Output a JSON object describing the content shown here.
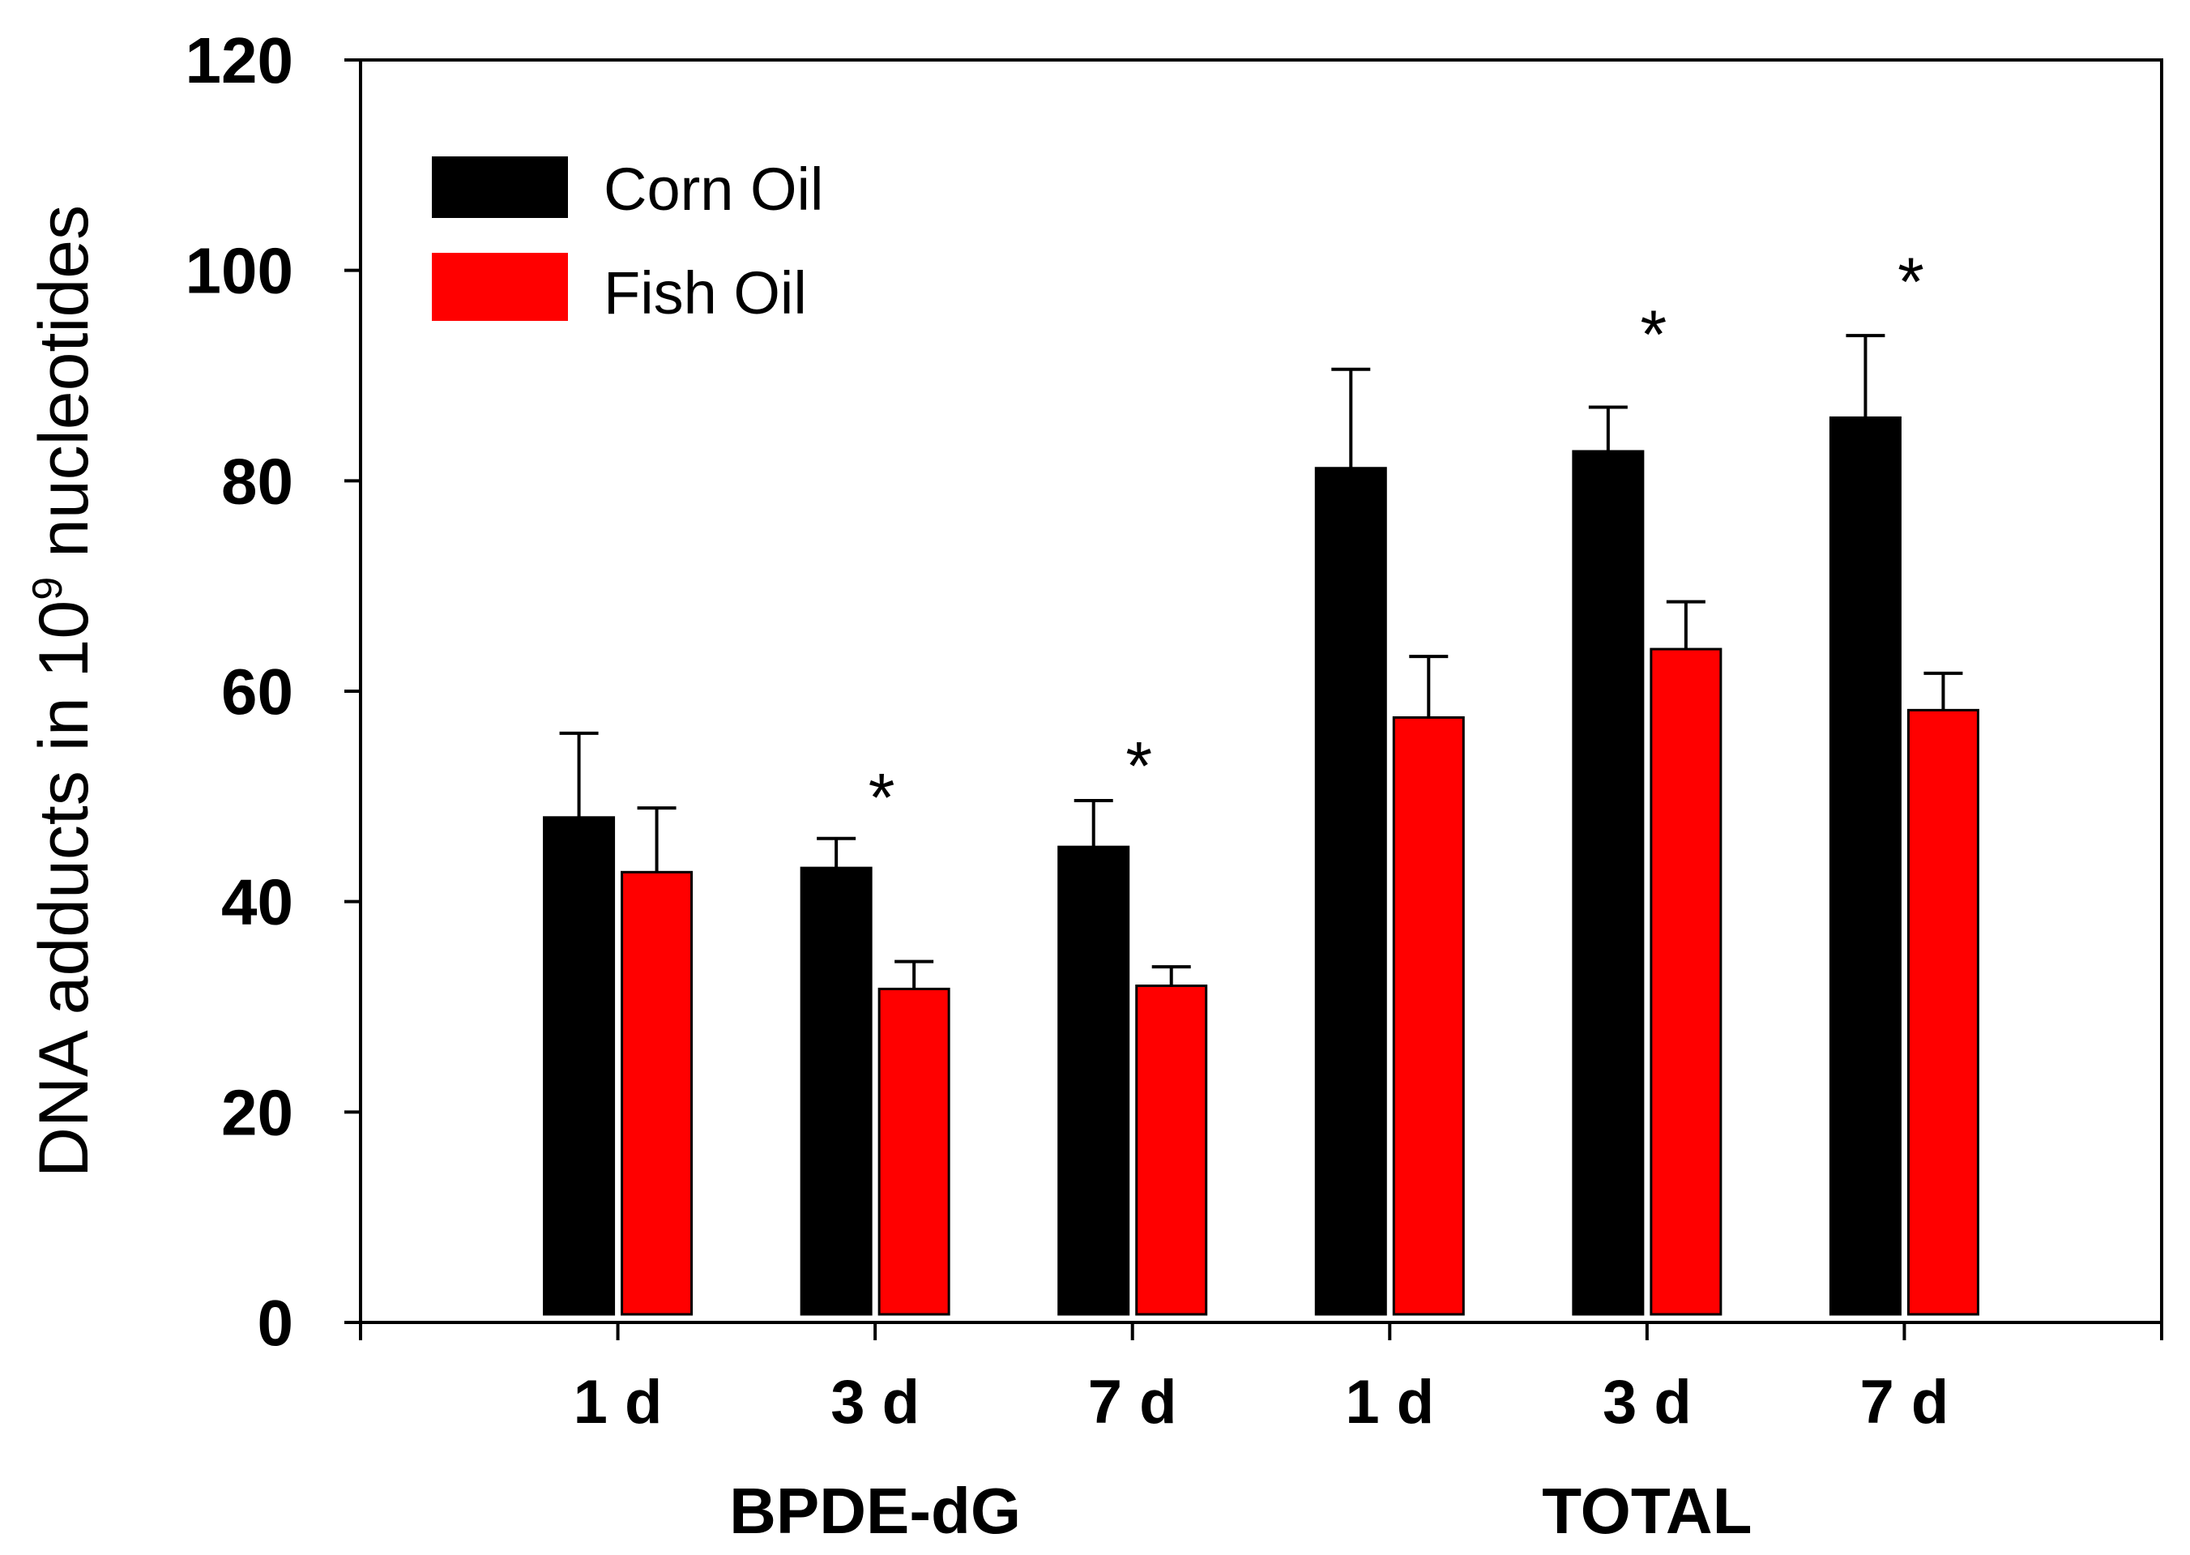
{
  "chart_data": {
    "type": "bar",
    "title": "",
    "ylabel": "DNA adducts in 10⁹ nucleotides",
    "ylabel_parts": {
      "prefix": "DNA adducts in 10",
      "superscript": "9",
      "suffix": " nucleotides"
    },
    "ylim": [
      0,
      120
    ],
    "yticks": [
      0,
      20,
      40,
      60,
      80,
      100,
      120
    ],
    "ytick_labels": [
      "0",
      "20",
      "40",
      "60",
      "80",
      "100",
      "120"
    ],
    "categories": [
      "1 d",
      "3 d",
      "7 d",
      "1 d",
      "3 d",
      "7 d"
    ],
    "groups": [
      {
        "label": "BPDE-dG",
        "category_indices": [
          0,
          1,
          2
        ]
      },
      {
        "label": "TOTAL",
        "category_indices": [
          3,
          4,
          5
        ]
      }
    ],
    "series": [
      {
        "name": "Corn Oil",
        "color": "#000000",
        "values": [
          48,
          43.2,
          45.2,
          81.2,
          82.8,
          86
        ],
        "errors": [
          8,
          2.8,
          4.4,
          9.4,
          4.2,
          7.8
        ]
      },
      {
        "name": "Fish Oil",
        "color": "#ff0000",
        "values": [
          42.8,
          31.7,
          32,
          57.5,
          64,
          58.2
        ],
        "errors": [
          6.1,
          2.6,
          1.8,
          5.8,
          4.5,
          3.5
        ]
      }
    ],
    "significance_marker": "*",
    "significant": [
      false,
      true,
      true,
      false,
      true,
      true
    ],
    "significance_y": [
      null,
      52,
      55,
      null,
      96,
      101
    ],
    "legend": {
      "location": "upper-left"
    },
    "grid": false
  }
}
